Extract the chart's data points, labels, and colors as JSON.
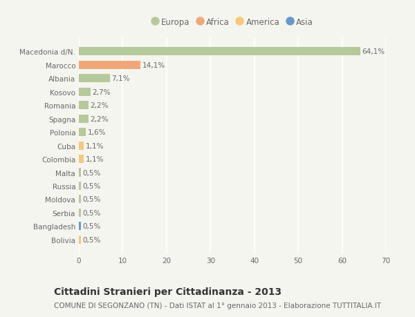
{
  "categories": [
    "Bolivia",
    "Bangladesh",
    "Serbia",
    "Moldova",
    "Russia",
    "Malta",
    "Colombia",
    "Cuba",
    "Polonia",
    "Spagna",
    "Romania",
    "Kosovo",
    "Albania",
    "Marocco",
    "Macedonia d/N."
  ],
  "values": [
    0.5,
    0.5,
    0.5,
    0.5,
    0.5,
    0.5,
    1.1,
    1.1,
    1.6,
    2.2,
    2.2,
    2.7,
    7.1,
    14.1,
    64.1
  ],
  "labels": [
    "0,5%",
    "0,5%",
    "0,5%",
    "0,5%",
    "0,5%",
    "0,5%",
    "1,1%",
    "1,1%",
    "1,6%",
    "2,2%",
    "2,2%",
    "2,7%",
    "7,1%",
    "14,1%",
    "64,1%"
  ],
  "colors": [
    "#f5c87a",
    "#6699cc",
    "#b5c99a",
    "#b5c99a",
    "#b5c99a",
    "#b5c99a",
    "#f5c87a",
    "#f5c87a",
    "#b5c99a",
    "#b5c99a",
    "#b5c99a",
    "#b5c99a",
    "#b5c99a",
    "#f0a878",
    "#b5c99a"
  ],
  "legend": [
    {
      "label": "Europa",
      "color": "#b5c99a"
    },
    {
      "label": "Africa",
      "color": "#f0a878"
    },
    {
      "label": "America",
      "color": "#f5c87a"
    },
    {
      "label": "Asia",
      "color": "#6699cc"
    }
  ],
  "xlim": [
    0,
    70
  ],
  "xticks": [
    0,
    10,
    20,
    30,
    40,
    50,
    60,
    70
  ],
  "title": "Cittadini Stranieri per Cittadinanza - 2013",
  "subtitle": "COMUNE DI SEGONZANO (TN) - Dati ISTAT al 1° gennaio 2013 - Elaborazione TUTTITALIA.IT",
  "background_color": "#f5f5f0",
  "grid_color": "#ffffff",
  "bar_height": 0.62,
  "title_fontsize": 10,
  "subtitle_fontsize": 7.5,
  "label_fontsize": 7.5,
  "tick_fontsize": 7.5,
  "legend_fontsize": 8.5
}
